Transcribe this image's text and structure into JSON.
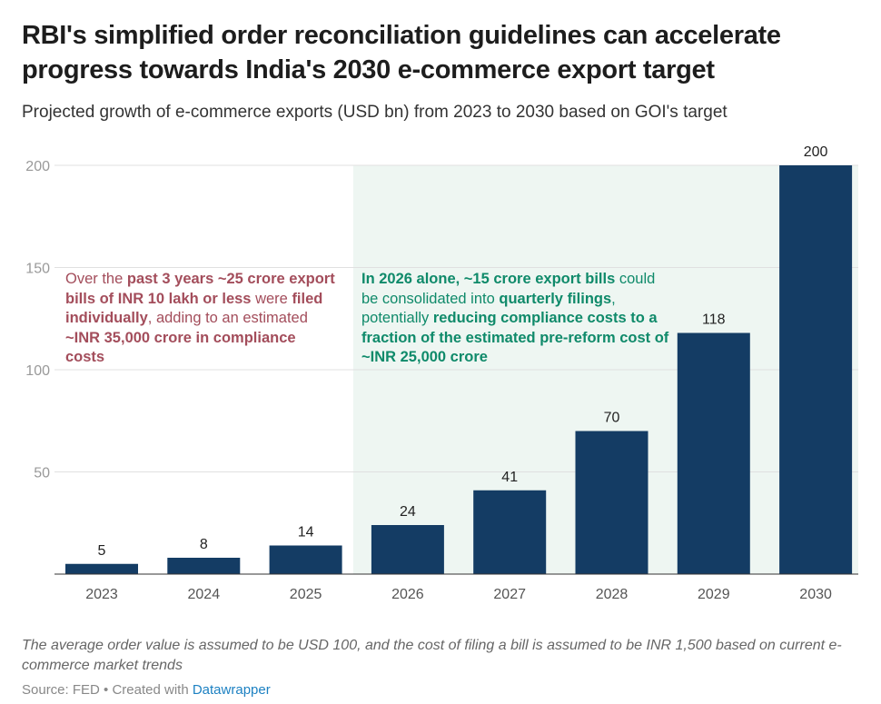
{
  "title": "RBI's simplified order reconciliation guidelines can accelerate progress towards India's 2030 e-commerce export target",
  "subtitle": "Projected growth of e-commerce exports (USD bn) from 2023 to 2030 based on GOI's target",
  "chart_data": {
    "type": "bar",
    "categories": [
      "2023",
      "2024",
      "2025",
      "2026",
      "2027",
      "2028",
      "2029",
      "2030"
    ],
    "values": [
      5,
      8,
      14,
      24,
      41,
      70,
      118,
      200
    ],
    "ylim": [
      0,
      200
    ],
    "yticks": [
      50,
      100,
      150,
      200
    ],
    "grid": true,
    "bar_color": "#143c64",
    "highlight_range": [
      "2026",
      "2030"
    ],
    "highlight_color": "#eef6f2",
    "annotations": [
      {
        "color": "#a34d5b",
        "segments": [
          {
            "t": "Over the ",
            "b": false
          },
          {
            "t": "past 3 years ~25 crore export bills of INR 10 lakh or less",
            "b": true
          },
          {
            "t": " were ",
            "b": false
          },
          {
            "t": "filed individually",
            "b": true
          },
          {
            "t": ", adding to an estimated ",
            "b": false
          },
          {
            "t": "~INR 35,000 crore in compliance costs",
            "b": true
          }
        ]
      },
      {
        "color": "#0f8a6a",
        "segments": [
          {
            "t": "In 2026 alone, ~15 crore export bills",
            "b": true
          },
          {
            "t": " could be consolidated into ",
            "b": false
          },
          {
            "t": "quarterly filings",
            "b": true
          },
          {
            "t": ", potentially ",
            "b": false
          },
          {
            "t": "reducing compliance costs to a fraction of the estimated pre-reform cost of ~INR 25,000 crore",
            "b": true
          }
        ]
      }
    ]
  },
  "notes": "The average order value is assumed to be USD 100, and the cost of filing a bill is assumed to be INR 1,500 based on current e-commerce market trends",
  "source": {
    "prefix": "Source: FED",
    "created": " • Created with ",
    "link": "Datawrapper"
  }
}
